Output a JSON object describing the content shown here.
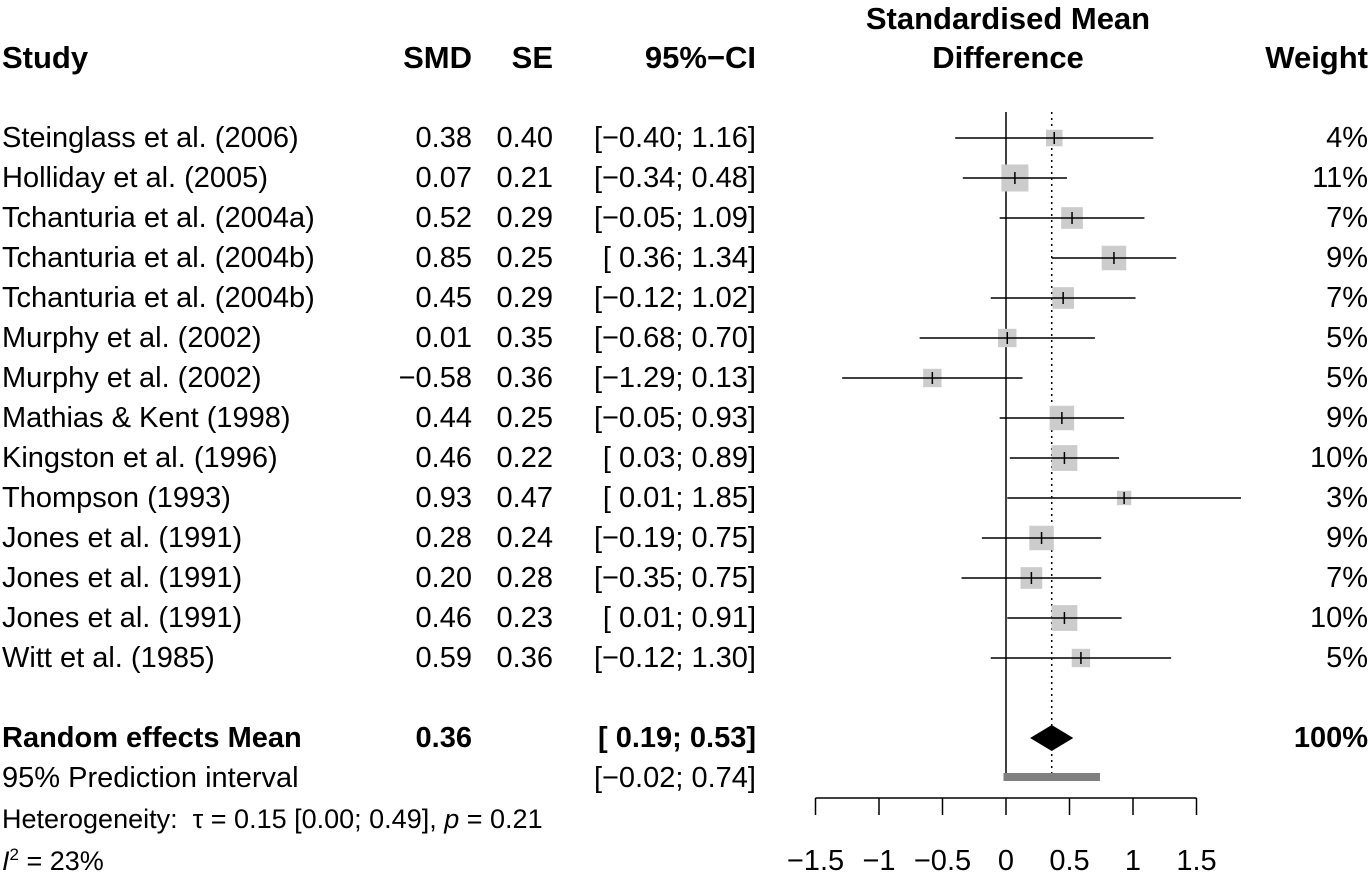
{
  "headers": {
    "study": "Study",
    "smd": "SMD",
    "se": "SE",
    "ci": "95%−CI",
    "plot_line1": "Standardised Mean",
    "plot_line2": "Difference",
    "weight": "Weight"
  },
  "studies": [
    {
      "study": "Steinglass et al. (2006)",
      "smd": "0.38",
      "se": "0.40",
      "ci": "[−0.40; 1.16]",
      "weight": "4%"
    },
    {
      "study": "Holliday et al. (2005)",
      "smd": "0.07",
      "se": "0.21",
      "ci": "[−0.34; 0.48]",
      "weight": "11%"
    },
    {
      "study": "Tchanturia et al. (2004a)",
      "smd": "0.52",
      "se": "0.29",
      "ci": "[−0.05; 1.09]",
      "weight": "7%"
    },
    {
      "study": "Tchanturia  et al. (2004b)",
      "smd": "0.85",
      "se": "0.25",
      "ci": "[ 0.36; 1.34]",
      "weight": "9%"
    },
    {
      "study": "Tchanturia  et al. (2004b)",
      "smd": "0.45",
      "se": "0.29",
      "ci": "[−0.12; 1.02]",
      "weight": "7%"
    },
    {
      "study": "Murphy et al. (2002)",
      "smd": "0.01",
      "se": "0.35",
      "ci": "[−0.68; 0.70]",
      "weight": "5%"
    },
    {
      "study": "Murphy et al. (2002)",
      "smd": "−0.58",
      "se": "0.36",
      "ci": "[−1.29; 0.13]",
      "weight": "5%"
    },
    {
      "study": "Mathias & Kent (1998)",
      "smd": "0.44",
      "se": "0.25",
      "ci": "[−0.05; 0.93]",
      "weight": "9%"
    },
    {
      "study": "Kingston et al. (1996)",
      "smd": "0.46",
      "se": "0.22",
      "ci": "[ 0.03; 0.89]",
      "weight": "10%"
    },
    {
      "study": "Thompson (1993)",
      "smd": "0.93",
      "se": "0.47",
      "ci": "[ 0.01; 1.85]",
      "weight": "3%"
    },
    {
      "study": "Jones et al. (1991)",
      "smd": "0.28",
      "se": "0.24",
      "ci": "[−0.19; 0.75]",
      "weight": "9%"
    },
    {
      "study": "Jones et al. (1991)",
      "smd": "0.20",
      "se": "0.28",
      "ci": "[−0.35; 0.75]",
      "weight": "7%"
    },
    {
      "study": "Jones et al. (1991)",
      "smd": "0.46",
      "se": "0.23",
      "ci": "[ 0.01; 0.91]",
      "weight": "10%"
    },
    {
      "study": "Witt et al. (1985)",
      "smd": "0.59",
      "se": "0.36",
      "ci": "[−0.12; 1.30]",
      "weight": "5%"
    }
  ],
  "summary": {
    "label": "Random effects Mean",
    "smd": "0.36",
    "ci": "[ 0.19; 0.53]",
    "weight": "100%"
  },
  "prediction": {
    "label": "95% Prediction interval",
    "ci": "[−0.02; 0.74]"
  },
  "heterogeneity": {
    "prefix": "Heterogeneity:",
    "tau_text": "τ = 0.15 [0.00; 0.49], ",
    "p_symbol": "p",
    "p_text": " = 0.21",
    "i2_symbol": "I",
    "i2_sup": "2",
    "i2_text": " = 23%"
  },
  "chart_data": {
    "type": "forest",
    "xlabel": "Standardised Mean Difference",
    "xlim": [
      -1.5,
      1.5
    ],
    "ticks": [
      -1.5,
      -1,
      -0.5,
      0,
      0.5,
      1,
      1.5
    ],
    "tick_labels": [
      "−1.5",
      "−1",
      "−0.5",
      "0",
      "0.5",
      "1",
      "1.5"
    ],
    "studies": [
      {
        "est": 0.38,
        "lo": -0.4,
        "hi": 1.16,
        "weight": 4
      },
      {
        "est": 0.07,
        "lo": -0.34,
        "hi": 0.48,
        "weight": 11
      },
      {
        "est": 0.52,
        "lo": -0.05,
        "hi": 1.09,
        "weight": 7
      },
      {
        "est": 0.85,
        "lo": 0.36,
        "hi": 1.34,
        "weight": 9
      },
      {
        "est": 0.45,
        "lo": -0.12,
        "hi": 1.02,
        "weight": 7
      },
      {
        "est": 0.01,
        "lo": -0.68,
        "hi": 0.7,
        "weight": 5
      },
      {
        "est": -0.58,
        "lo": -1.29,
        "hi": 0.13,
        "weight": 5
      },
      {
        "est": 0.44,
        "lo": -0.05,
        "hi": 0.93,
        "weight": 9
      },
      {
        "est": 0.46,
        "lo": 0.03,
        "hi": 0.89,
        "weight": 10
      },
      {
        "est": 0.93,
        "lo": 0.01,
        "hi": 1.85,
        "weight": 3
      },
      {
        "est": 0.28,
        "lo": -0.19,
        "hi": 0.75,
        "weight": 9
      },
      {
        "est": 0.2,
        "lo": -0.35,
        "hi": 0.75,
        "weight": 7
      },
      {
        "est": 0.46,
        "lo": 0.01,
        "hi": 0.91,
        "weight": 10
      },
      {
        "est": 0.59,
        "lo": -0.12,
        "hi": 1.3,
        "weight": 5
      }
    ],
    "pooled": {
      "est": 0.36,
      "lo": 0.19,
      "hi": 0.53
    },
    "prediction_interval": {
      "lo": -0.02,
      "hi": 0.74
    },
    "null_line": 0,
    "reference_line": 0.36,
    "colors": {
      "square": "#cccccc",
      "line": "#000000",
      "diamond": "#000000",
      "prediction": "#808080"
    }
  }
}
